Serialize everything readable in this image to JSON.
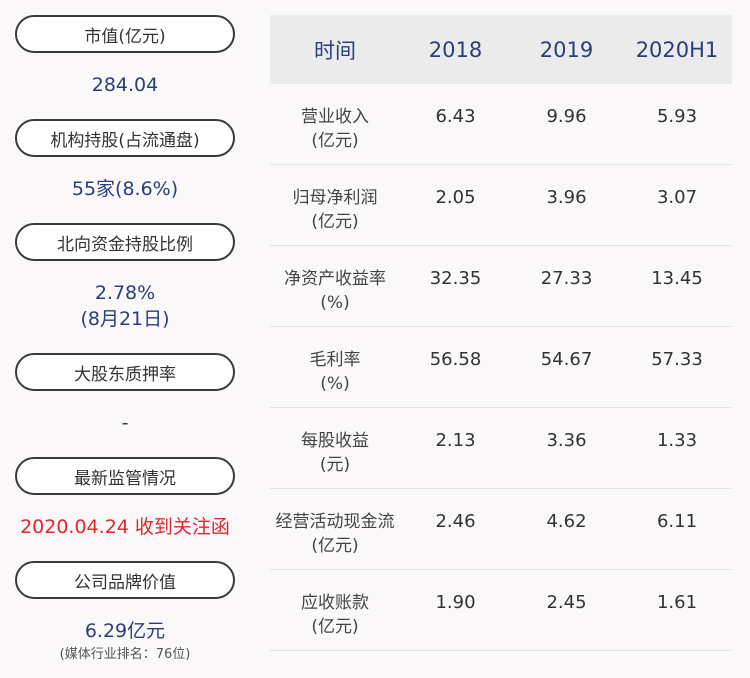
{
  "left": {
    "market_cap_label": "市值(亿元)",
    "market_cap_value": "284.04",
    "institution_label": "机构持股(占流通盘)",
    "institution_value": "55家(8.6%)",
    "northbound_label": "北向资金持股比例",
    "northbound_value": "2.78%",
    "northbound_date": "(8月21日)",
    "pledge_label": "大股东质押率",
    "pledge_value": "-",
    "regulation_label": "最新监管情况",
    "regulation_value": "2020.04.24 收到关注函",
    "brand_label": "公司品牌价值",
    "brand_value": "6.29亿元",
    "brand_rank": "(媒体行业排名：76位)"
  },
  "table": {
    "headers": [
      "时间",
      "2018",
      "2019",
      "2020H1"
    ],
    "rows": [
      {
        "label": "营业收入",
        "unit": "(亿元)",
        "values": [
          "6.43",
          "9.96",
          "5.93"
        ]
      },
      {
        "label": "归母净利润",
        "unit": "(亿元)",
        "values": [
          "2.05",
          "3.96",
          "3.07"
        ]
      },
      {
        "label": "净资产收益率",
        "unit": "(%)",
        "values": [
          "32.35",
          "27.33",
          "13.45"
        ]
      },
      {
        "label": "毛利率",
        "unit": "(%)",
        "values": [
          "56.58",
          "54.67",
          "57.33"
        ]
      },
      {
        "label": "每股收益",
        "unit": "(元)",
        "values": [
          "2.13",
          "3.36",
          "1.33"
        ]
      },
      {
        "label": "经营活动现金流",
        "unit": "(亿元)",
        "values": [
          "2.46",
          "4.62",
          "6.11"
        ]
      },
      {
        "label": "应收账款",
        "unit": "(亿元)",
        "values": [
          "1.90",
          "2.45",
          "1.61"
        ]
      }
    ]
  }
}
